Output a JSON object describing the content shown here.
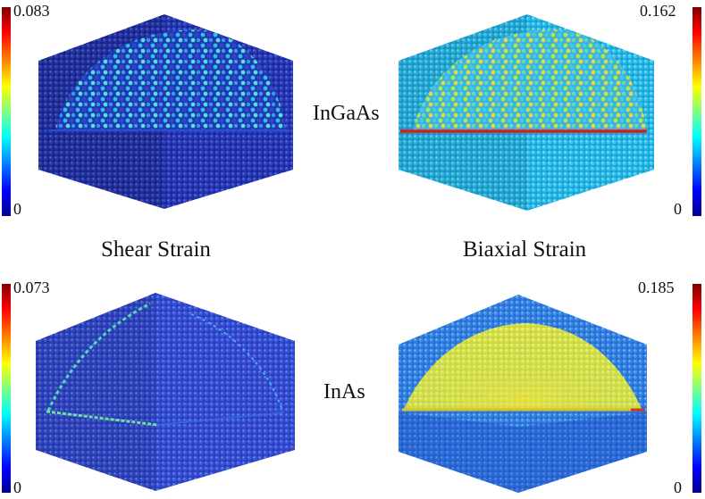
{
  "materials": {
    "top": "InGaAs",
    "bottom": "InAs"
  },
  "strain_types": {
    "left": "Shear Strain",
    "right": "Biaxial Strain"
  },
  "panels": [
    {
      "id": "ingaas-shear",
      "material": "InGaAs",
      "strain": "Shear Strain",
      "colorbar_min": "0",
      "colorbar_max": "0.083"
    },
    {
      "id": "ingaas-biaxial",
      "material": "InGaAs",
      "strain": "Biaxial Strain",
      "colorbar_min": "0",
      "colorbar_max": "0.162"
    },
    {
      "id": "inas-shear",
      "material": "InAs",
      "strain": "Shear Strain",
      "colorbar_min": "0",
      "colorbar_max": "0.073"
    },
    {
      "id": "inas-biaxial",
      "material": "InAs",
      "strain": "Biaxial Strain",
      "colorbar_min": "0",
      "colorbar_max": "0.185"
    }
  ],
  "colormap": [
    "#00008f",
    "#0000ff",
    "#00ffff",
    "#ffff00",
    "#ff0000",
    "#800000"
  ]
}
